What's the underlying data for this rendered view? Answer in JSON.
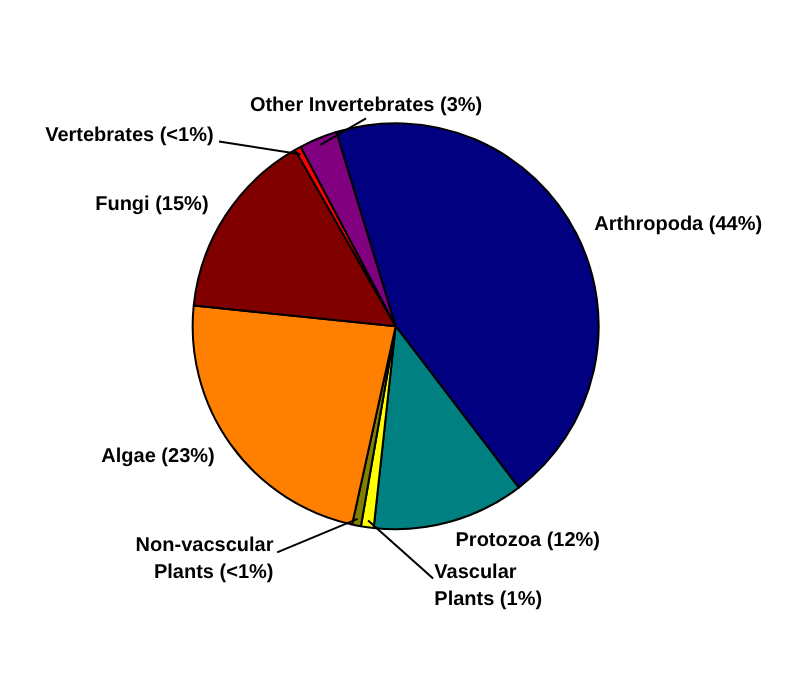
{
  "chart_data": {
    "type": "pie",
    "categories": [
      "Arthropoda (44%)",
      "Protozoa (12%)",
      "Vascular\nPlants (1%)",
      "Non-vacscular\nPlants (<1%)",
      "Algae (23%)",
      "Fungi (15%)",
      "Vertebrates (<1%)",
      "Other Invertebrates (3%)"
    ],
    "values": [
      44,
      12,
      1,
      0.7,
      23,
      15,
      0.5,
      3
    ],
    "colors": [
      "#000080",
      "#008080",
      "#ffff00",
      "#808000",
      "#ff8000",
      "#800000",
      "#ff0000",
      "#800080"
    ]
  }
}
